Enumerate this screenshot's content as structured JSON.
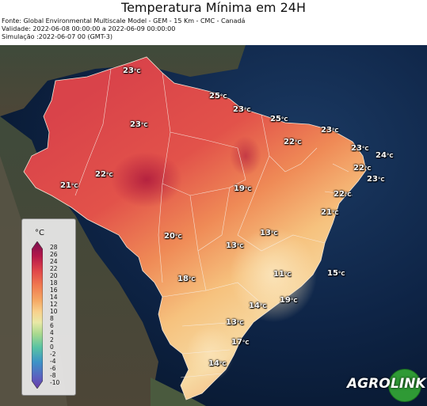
{
  "title": "Temperatura Mínima em 24H",
  "meta": {
    "source": "Fonte: Global Environmental Multiscale Model - GEM - 15 Km - CMC - Canadá",
    "validity": "Validade: 2022-06-08 00:00:00 a 2022-06-09 00:00:00",
    "simulation": "Simulação :2022-06-07 00 (GMT-3)"
  },
  "unit_suffix": "°C",
  "temperature_labels": [
    {
      "id": "roraima",
      "value": "23"
    },
    {
      "id": "amapa",
      "value": "25"
    },
    {
      "id": "belem",
      "value": "23"
    },
    {
      "id": "amazonas",
      "value": "23"
    },
    {
      "id": "maranhao-coast",
      "value": "25"
    },
    {
      "id": "ceara",
      "value": "23"
    },
    {
      "id": "piaui",
      "value": "22"
    },
    {
      "id": "rn",
      "value": "23"
    },
    {
      "id": "natal",
      "value": "24"
    },
    {
      "id": "paraiba",
      "value": "22"
    },
    {
      "id": "recife",
      "value": "23"
    },
    {
      "id": "acre-west",
      "value": "22"
    },
    {
      "id": "acre",
      "value": "21"
    },
    {
      "id": "tocantins",
      "value": "19"
    },
    {
      "id": "alagoas",
      "value": "22"
    },
    {
      "id": "bahia",
      "value": "21"
    },
    {
      "id": "mato-grosso",
      "value": "20"
    },
    {
      "id": "goias",
      "value": "13"
    },
    {
      "id": "bahia-west",
      "value": "13"
    },
    {
      "id": "ms",
      "value": "18"
    },
    {
      "id": "minas",
      "value": "11"
    },
    {
      "id": "espirito-santo",
      "value": "15"
    },
    {
      "id": "sao-paulo",
      "value": "14"
    },
    {
      "id": "rio",
      "value": "19"
    },
    {
      "id": "parana",
      "value": "13"
    },
    {
      "id": "santa-catarina",
      "value": "17"
    },
    {
      "id": "rio-grande-sul",
      "value": "14"
    }
  ],
  "legend": {
    "title": "°C",
    "ticks": [
      "28",
      "26",
      "24",
      "22",
      "20",
      "18",
      "16",
      "14",
      "12",
      "10",
      "8",
      "6",
      "4",
      "2",
      "0",
      "-2",
      "-4",
      "-6",
      "-8",
      "-10"
    ]
  },
  "logo": {
    "left_text": "AGRO",
    "right_text": "LINK"
  }
}
